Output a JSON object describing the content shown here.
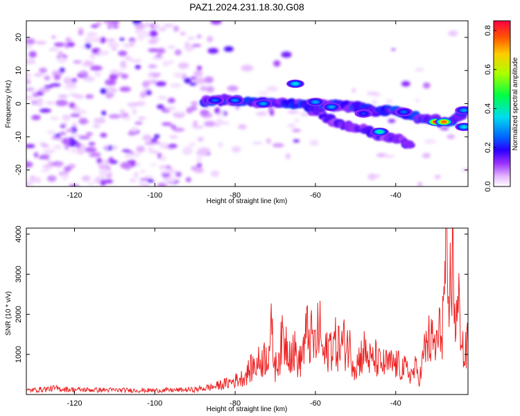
{
  "title": "PAZ1.2024.231.18.30.G08",
  "colors": {
    "snr_line": "#ee2222",
    "colormap": [
      "#ffffff",
      "#e9c8ff",
      "#c48cff",
      "#8a2be2",
      "#6a00d8",
      "#1e00ff",
      "#006cff",
      "#00e0e0",
      "#00ff60",
      "#aaff00",
      "#ffd000",
      "#ff6000",
      "#ff0000",
      "#ff0060"
    ]
  },
  "chart_data": [
    {
      "type": "heatmap",
      "title": "",
      "xlabel": "Height of straight line (km)",
      "ylabel": "Frequency (Hz)",
      "xlim": [
        -132,
        -22
      ],
      "ylim": [
        -25,
        25
      ],
      "xticks": [
        -120,
        -100,
        -80,
        -60,
        -40
      ],
      "yticks": [
        -20,
        -10,
        0,
        10,
        20
      ],
      "colorbar": {
        "label": "Normalized spectral amplitude",
        "range": [
          0.0,
          0.85
        ],
        "ticks": [
          0.0,
          0.2,
          0.4,
          0.6,
          0.8
        ]
      },
      "main_ridge": [
        {
          "x": -88,
          "y": 1
        },
        {
          "x": -80,
          "y": 1
        },
        {
          "x": -70,
          "y": 0
        },
        {
          "x": -60,
          "y": 0
        },
        {
          "x": -50,
          "y": -1
        },
        {
          "x": -45,
          "y": -2
        },
        {
          "x": -40,
          "y": -2
        },
        {
          "x": -35,
          "y": -4
        },
        {
          "x": -30,
          "y": -5
        },
        {
          "x": -26,
          "y": -6
        },
        {
          "x": -23,
          "y": -2
        }
      ],
      "branch_ridge": [
        {
          "x": -62,
          "y": -1
        },
        {
          "x": -55,
          "y": -6
        },
        {
          "x": -48,
          "y": -8
        },
        {
          "x": -42,
          "y": -10
        },
        {
          "x": -36,
          "y": -12
        }
      ],
      "peaks": [
        {
          "x": -30,
          "y": -5.5,
          "amplitude": 0.8
        },
        {
          "x": -28,
          "y": -5.5,
          "amplitude": 0.75
        },
        {
          "x": -44,
          "y": -8.5,
          "amplitude": 0.4
        },
        {
          "x": -65,
          "y": 6,
          "amplitude": 0.35
        },
        {
          "x": -23,
          "y": -7,
          "amplitude": 0.35
        },
        {
          "x": -23,
          "y": -2,
          "amplitude": 0.3
        },
        {
          "x": -56,
          "y": -1,
          "amplitude": 0.3
        },
        {
          "x": -80,
          "y": 1,
          "amplitude": 0.28
        },
        {
          "x": -73,
          "y": 0,
          "amplitude": 0.3
        },
        {
          "x": -60,
          "y": 0.5,
          "amplitude": 0.3
        },
        {
          "x": -38,
          "y": -2.5,
          "amplitude": 0.25
        },
        {
          "x": -85,
          "y": 1,
          "amplitude": 0.25
        },
        {
          "x": -48,
          "y": -3,
          "amplitude": 0.22
        }
      ]
    },
    {
      "type": "line",
      "title": "",
      "xlabel": "Height of straight line (km)",
      "ylabel": "SNR (10 * v/v)",
      "xlim": [
        -132,
        -22
      ],
      "ylim": [
        0,
        4150
      ],
      "xticks": [
        -120,
        -100,
        -80,
        -60,
        -40
      ],
      "yticks": [
        1000,
        2000,
        3000,
        4000
      ],
      "series": [
        {
          "name": "",
          "x": [
            -132,
            -125,
            -120,
            -110,
            -100,
            -95,
            -90,
            -85,
            -82,
            -78,
            -76,
            -74,
            -72,
            -71,
            -70,
            -68,
            -66,
            -65,
            -64,
            -62,
            -60,
            -59,
            -58,
            -56,
            -54,
            -52,
            -50,
            -48,
            -46,
            -45,
            -44,
            -42,
            -40,
            -38,
            -36,
            -35,
            -34,
            -33,
            -32,
            -30,
            -29,
            -28,
            -27.5,
            -27,
            -26,
            -25,
            -24,
            -23,
            -22
          ],
          "y": [
            100,
            150,
            120,
            110,
            100,
            110,
            120,
            200,
            280,
            420,
            650,
            800,
            1000,
            1500,
            650,
            1400,
            1100,
            1050,
            750,
            1550,
            1200,
            1700,
            900,
            1300,
            1200,
            1300,
            700,
            1100,
            800,
            900,
            750,
            750,
            750,
            650,
            500,
            650,
            400,
            1000,
            1350,
            1200,
            1500,
            2100,
            4100,
            1500,
            3600,
            1750,
            2200,
            800,
            1300
          ]
        }
      ]
    }
  ]
}
